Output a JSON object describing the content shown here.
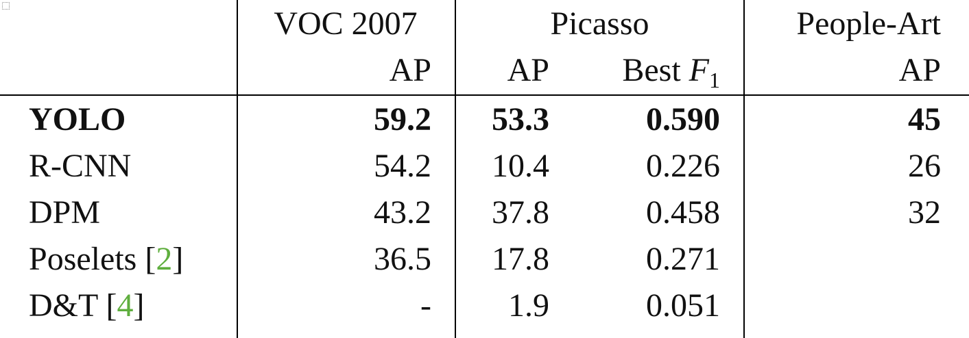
{
  "table": {
    "header1": {
      "voc": "VOC 2007",
      "picasso": "Picasso",
      "peopleart": "People-Art"
    },
    "header2": {
      "voc_ap": "AP",
      "picasso_ap": "AP",
      "picasso_f1_prefix": "Best ",
      "picasso_f1_var": "F",
      "picasso_f1_sub": "1",
      "peopleart_ap": "AP"
    },
    "rows": [
      {
        "method": "YOLO",
        "ref": "",
        "voc_ap": "59.2",
        "picasso_ap": "53.3",
        "picasso_f1": "0.590",
        "peopleart_ap": "45",
        "bold": true
      },
      {
        "method": "R-CNN",
        "ref": "",
        "voc_ap": "54.2",
        "picasso_ap": "10.4",
        "picasso_f1": "0.226",
        "peopleart_ap": "26"
      },
      {
        "method": "DPM",
        "ref": "",
        "voc_ap": "43.2",
        "picasso_ap": "37.8",
        "picasso_f1": "0.458",
        "peopleart_ap": "32"
      },
      {
        "method": "Poselets [",
        "ref": "2",
        "ref_close": "]",
        "voc_ap": "36.5",
        "picasso_ap": "17.8",
        "picasso_f1": "0.271",
        "peopleart_ap": ""
      },
      {
        "method": "D&T [",
        "ref": "4",
        "ref_close": "]",
        "voc_ap": "-",
        "picasso_ap": "1.9",
        "picasso_f1": "0.051",
        "peopleart_ap": ""
      }
    ]
  },
  "colors": {
    "reference_link": "#5fae3e",
    "rule": "#000000"
  }
}
